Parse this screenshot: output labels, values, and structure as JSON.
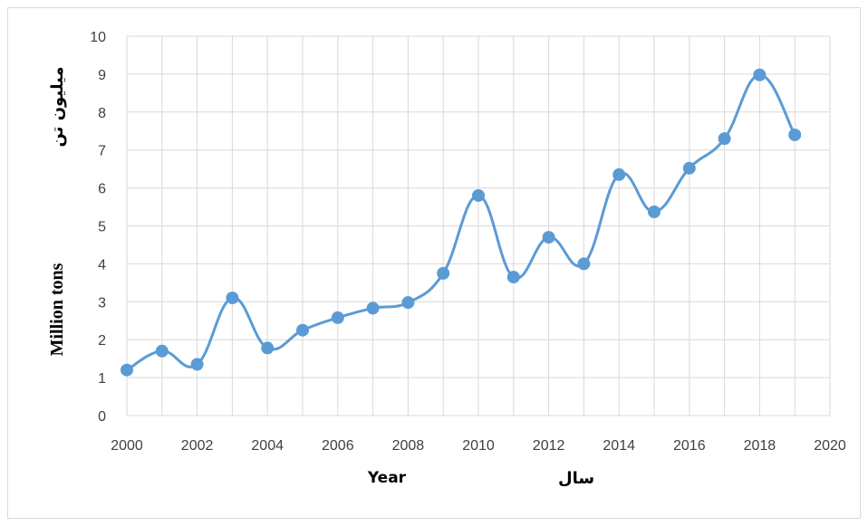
{
  "chart_data": {
    "type": "line",
    "smooth": true,
    "title": "",
    "xlabel": "Year",
    "xlabel_secondary": "سال",
    "ylabel": "Million tons",
    "ylabel_secondary": "میلیون تن",
    "xlim": [
      2000,
      2020
    ],
    "ylim": [
      0,
      10
    ],
    "x_ticks": [
      "2000",
      "2002",
      "2004",
      "2006",
      "2008",
      "2010",
      "2012",
      "2014",
      "2016",
      "2018",
      "2020"
    ],
    "y_ticks": [
      "0",
      "1",
      "2",
      "3",
      "4",
      "5",
      "6",
      "7",
      "8",
      "9",
      "10"
    ],
    "grid": true,
    "legend": false,
    "series": [
      {
        "color": "#5b9bd5",
        "x": [
          2000,
          2001,
          2002,
          2003,
          2004,
          2005,
          2006,
          2007,
          2008,
          2009,
          2010,
          2011,
          2012,
          2013,
          2014,
          2015,
          2016,
          2017,
          2018,
          2019
        ],
        "values": [
          1.2,
          1.7,
          1.35,
          3.1,
          1.78,
          2.25,
          2.58,
          2.83,
          2.98,
          3.75,
          5.8,
          3.65,
          4.7,
          4.0,
          6.35,
          5.37,
          6.52,
          7.3,
          8.98,
          7.4
        ]
      }
    ]
  }
}
